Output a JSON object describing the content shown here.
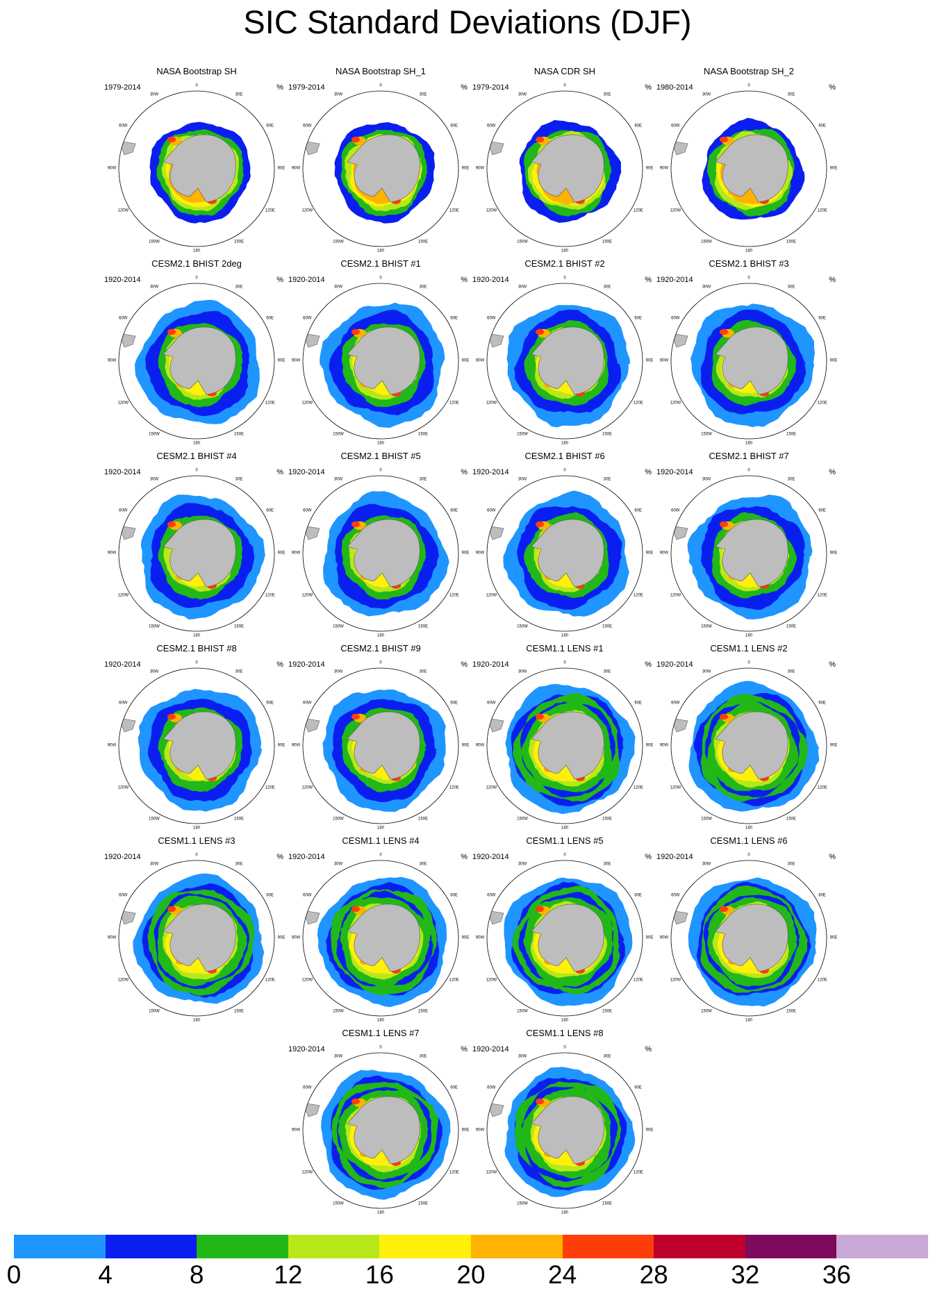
{
  "title": "SIC Standard Deviations (DJF)",
  "units": "%",
  "longitude_labels": [
    "0",
    "30E",
    "60E",
    "90E",
    "120E",
    "150E",
    "180",
    "150W",
    "120W",
    "90W",
    "60W",
    "30W"
  ],
  "chart_data": {
    "type": "heatmap",
    "title": "SIC Standard Deviations (DJF)",
    "projection": "south polar stereographic",
    "units": "%",
    "colorbar": {
      "levels": [
        0,
        4,
        8,
        12,
        16,
        20,
        24,
        28,
        32,
        36
      ],
      "colors": [
        "#1e95ff",
        "#0a1ef0",
        "#21b818",
        "#b8e81a",
        "#fff00a",
        "#ffb300",
        "#ff3d0a",
        "#c0002c",
        "#7d0a5c",
        "#c8a8d6"
      ]
    },
    "panels": [
      {
        "title": "NASA Bootstrap SH",
        "years": "1979-2014"
      },
      {
        "title": "NASA Bootstrap SH_1",
        "years": "1979-2014"
      },
      {
        "title": "NASA CDR SH",
        "years": "1979-2014"
      },
      {
        "title": "NASA Bootstrap SH_2",
        "years": "1980-2014"
      },
      {
        "title": "CESM2.1 BHIST 2deg",
        "years": "1920-2014"
      },
      {
        "title": "CESM2.1 BHIST #1",
        "years": "1920-2014"
      },
      {
        "title": "CESM2.1 BHIST #2",
        "years": "1920-2014"
      },
      {
        "title": "CESM2.1 BHIST #3",
        "years": "1920-2014"
      },
      {
        "title": "CESM2.1 BHIST #4",
        "years": "1920-2014"
      },
      {
        "title": "CESM2.1 BHIST #5",
        "years": "1920-2014"
      },
      {
        "title": "CESM2.1 BHIST #6",
        "years": "1920-2014"
      },
      {
        "title": "CESM2.1 BHIST #7",
        "years": "1920-2014"
      },
      {
        "title": "CESM2.1 BHIST #8",
        "years": "1920-2014"
      },
      {
        "title": "CESM2.1 BHIST #9",
        "years": "1920-2014"
      },
      {
        "title": "CESM1.1 LENS #1",
        "years": "1920-2014"
      },
      {
        "title": "CESM1.1 LENS #2",
        "years": "1920-2014"
      },
      {
        "title": "CESM1.1 LENS #3",
        "years": "1920-2014"
      },
      {
        "title": "CESM1.1 LENS #4",
        "years": "1920-2014"
      },
      {
        "title": "CESM1.1 LENS #5",
        "years": "1920-2014"
      },
      {
        "title": "CESM1.1 LENS #6",
        "years": "1920-2014"
      },
      {
        "title": "CESM1.1 LENS #7",
        "years": "1920-2014"
      },
      {
        "title": "CESM1.1 LENS #8",
        "years": "1920-2014"
      }
    ]
  }
}
